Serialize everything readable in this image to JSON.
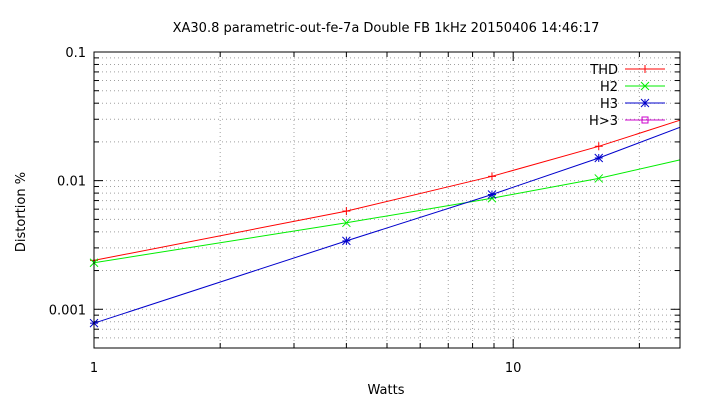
{
  "chart_data": {
    "type": "line",
    "title": "XA30.8 parametric-out-fe-7a Double FB 1kHz 20150406 14:46:17",
    "xlabel": "Watts",
    "ylabel": "Distortion %",
    "xscale": "log",
    "yscale": "log",
    "xlim": [
      1,
      25
    ],
    "ylim": [
      0.0005,
      0.1
    ],
    "grid": true,
    "legend_position": "top-right",
    "x_ticks": [
      {
        "value": 1,
        "label": "1"
      },
      {
        "value": 2,
        "label": ""
      },
      {
        "value": 3,
        "label": ""
      },
      {
        "value": 4,
        "label": ""
      },
      {
        "value": 5,
        "label": ""
      },
      {
        "value": 6,
        "label": ""
      },
      {
        "value": 7,
        "label": ""
      },
      {
        "value": 8,
        "label": ""
      },
      {
        "value": 9,
        "label": ""
      },
      {
        "value": 10,
        "label": "10"
      },
      {
        "value": 20,
        "label": ""
      }
    ],
    "y_ticks": [
      {
        "value": 0.001,
        "label": "0.001"
      },
      {
        "value": 0.01,
        "label": "0.01"
      },
      {
        "value": 0.1,
        "label": "0.1"
      }
    ],
    "series": [
      {
        "name": "THD",
        "color": "#ff0000",
        "marker": "plus",
        "points": [
          [
            1,
            0.0024
          ],
          [
            4,
            0.0058
          ],
          [
            8.9,
            0.0108
          ],
          [
            16,
            0.0185
          ]
        ],
        "extension": [
          25,
          0.0295
        ]
      },
      {
        "name": "H2",
        "color": "#00ee00",
        "marker": "cross",
        "points": [
          [
            1,
            0.0023
          ],
          [
            4,
            0.0047
          ],
          [
            8.9,
            0.0073
          ],
          [
            16,
            0.0104
          ]
        ],
        "extension": [
          25,
          0.0145
        ]
      },
      {
        "name": "H3",
        "color": "#0000cc",
        "marker": "star",
        "points": [
          [
            1,
            0.00078
          ],
          [
            4,
            0.0034
          ],
          [
            8.9,
            0.0078
          ],
          [
            16,
            0.015
          ]
        ],
        "extension": [
          25,
          0.026
        ]
      },
      {
        "name": "H>3",
        "color": "#cc00cc",
        "marker": "square",
        "points": [],
        "extension": null
      }
    ]
  }
}
